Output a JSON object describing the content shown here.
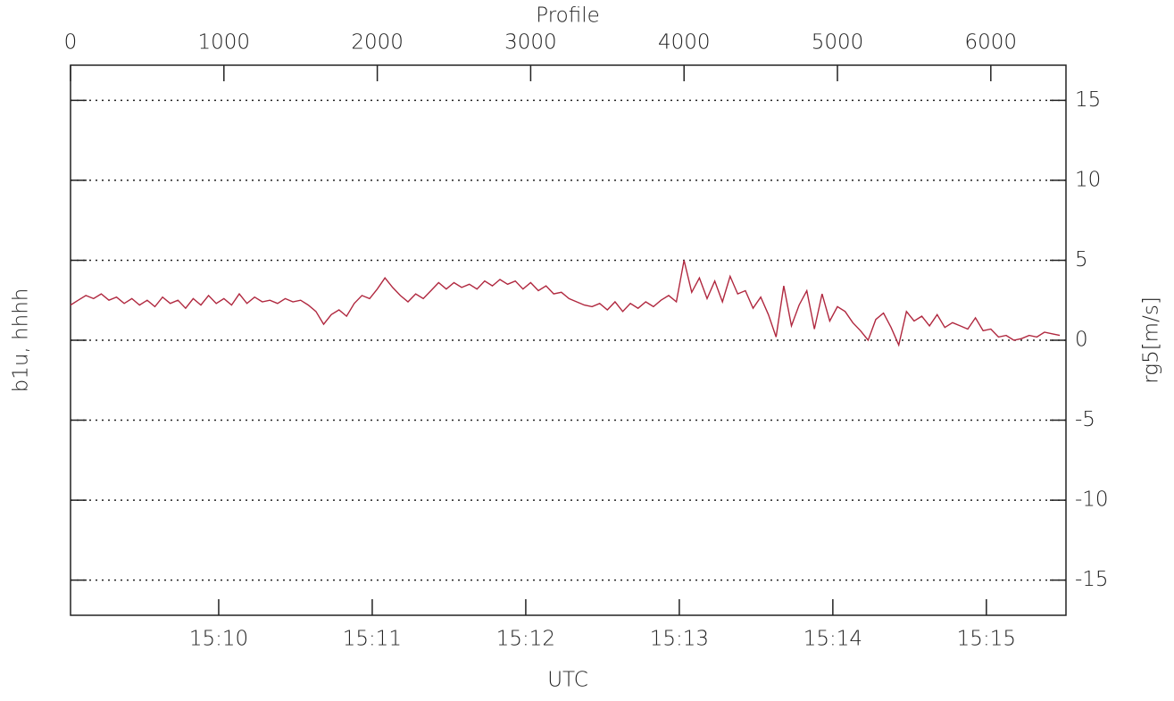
{
  "chart_data": {
    "type": "line",
    "title": "Profile",
    "xlabel": "UTC",
    "ylabel": "b1u, hhhh",
    "y2label": "rg5[m/s]",
    "xlim": [
      0,
      6490
    ],
    "xticks": [
      0,
      1000,
      2000,
      3000,
      4000,
      5000,
      6000
    ],
    "x2ticks": [
      {
        "value": 966,
        "label": "15:10"
      },
      {
        "value": 1967,
        "label": "15:11"
      },
      {
        "value": 2968,
        "label": "15:12"
      },
      {
        "value": 3969,
        "label": "15:13"
      },
      {
        "value": 4970,
        "label": "15:14"
      },
      {
        "value": 5971,
        "label": "15:15"
      }
    ],
    "ylim": [
      -17.2,
      17.2
    ],
    "yticks": [
      -15,
      -10,
      -5,
      0,
      5,
      10,
      15
    ],
    "grid": true,
    "x": [
      0,
      50,
      100,
      150,
      200,
      250,
      300,
      350,
      400,
      450,
      500,
      550,
      600,
      650,
      700,
      750,
      800,
      850,
      900,
      950,
      1000,
      1050,
      1100,
      1150,
      1200,
      1250,
      1300,
      1350,
      1400,
      1450,
      1500,
      1550,
      1600,
      1650,
      1700,
      1750,
      1800,
      1850,
      1900,
      1950,
      2000,
      2050,
      2100,
      2150,
      2200,
      2250,
      2300,
      2350,
      2400,
      2450,
      2500,
      2550,
      2600,
      2650,
      2700,
      2750,
      2800,
      2850,
      2900,
      2950,
      3000,
      3050,
      3100,
      3150,
      3200,
      3250,
      3300,
      3350,
      3400,
      3450,
      3500,
      3550,
      3600,
      3650,
      3700,
      3750,
      3800,
      3850,
      3900,
      3950,
      4000,
      4050,
      4100,
      4150,
      4200,
      4250,
      4300,
      4350,
      4400,
      4450,
      4500,
      4550,
      4600,
      4650,
      4700,
      4750,
      4800,
      4850,
      4900,
      4950,
      5000,
      5050,
      5100,
      5150,
      5200,
      5250,
      5300,
      5350,
      5400,
      5450,
      5500,
      5550,
      5600,
      5650,
      5700,
      5750,
      5800,
      5850,
      5900,
      5950,
      6000,
      6050,
      6100,
      6150,
      6200,
      6250,
      6300,
      6350,
      6400,
      6450
    ],
    "series": [
      {
        "color": "#b0283f",
        "values": [
          2.2,
          2.5,
          2.8,
          2.6,
          2.9,
          2.5,
          2.7,
          2.3,
          2.6,
          2.2,
          2.5,
          2.1,
          2.7,
          2.3,
          2.5,
          2.0,
          2.6,
          2.2,
          2.8,
          2.3,
          2.6,
          2.2,
          2.9,
          2.3,
          2.7,
          2.4,
          2.5,
          2.3,
          2.6,
          2.4,
          2.5,
          2.2,
          1.8,
          1.0,
          1.6,
          1.9,
          1.5,
          2.3,
          2.8,
          2.6,
          3.2,
          3.9,
          3.3,
          2.8,
          2.4,
          2.9,
          2.6,
          3.1,
          3.6,
          3.2,
          3.6,
          3.3,
          3.5,
          3.2,
          3.7,
          3.4,
          3.8,
          3.5,
          3.7,
          3.2,
          3.6,
          3.1,
          3.4,
          2.9,
          3.0,
          2.6,
          2.4,
          2.2,
          2.1,
          2.3,
          1.9,
          2.4,
          1.8,
          2.3,
          2.0,
          2.4,
          2.1,
          2.5,
          2.8,
          2.4,
          5.0,
          3.0,
          3.9,
          2.6,
          3.7,
          2.4,
          4.0,
          2.9,
          3.1,
          2.0,
          2.7,
          1.6,
          0.2,
          3.4,
          0.9,
          2.2,
          3.1,
          0.7,
          2.9,
          1.2,
          2.1,
          1.8,
          1.1,
          0.6,
          0.0,
          1.3,
          1.7,
          0.8,
          -0.3,
          1.8,
          1.2,
          1.5,
          0.9,
          1.6,
          0.8,
          1.1,
          0.9,
          0.7,
          1.4,
          0.6,
          0.7,
          0.2,
          0.3,
          0.0,
          0.1,
          0.3,
          0.2,
          0.5,
          0.4,
          0.3
        ]
      }
    ]
  }
}
